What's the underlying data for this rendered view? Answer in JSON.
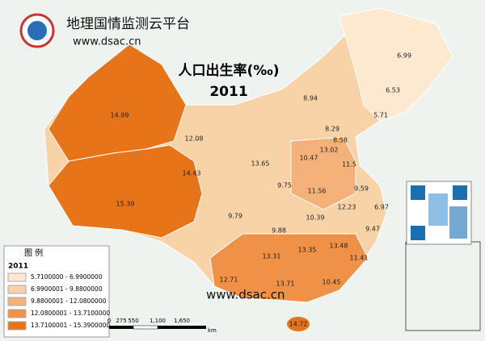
{
  "header": {
    "title": "地理国情监测云平台",
    "url": "www.dsac.cn"
  },
  "map": {
    "title": "人口出生率(‰)",
    "year": "2011",
    "regions": [
      14.99,
      12.08,
      14.43,
      15.39,
      13.65,
      9.75,
      10.47,
      13.02,
      8.29,
      8.58,
      8.94,
      6.99,
      6.53,
      5.71,
      11.5,
      11.56,
      9.59,
      12.23,
      6.97,
      9.47,
      10.39,
      9.79,
      9.88,
      13.31,
      13.35,
      13.48,
      11.41,
      12.71,
      13.71,
      10.45,
      14.72
    ]
  },
  "legend": {
    "title": "图 例",
    "year": "2011",
    "classes": [
      {
        "label": "5.7100000 - 6.9900000",
        "color": "#fde9d0"
      },
      {
        "label": "6.9900001 - 9.8800000",
        "color": "#f9d3a8"
      },
      {
        "label": "9.8800001 - 12.0800000",
        "color": "#f4b27a"
      },
      {
        "label": "12.0800001 - 13.7100000",
        "color": "#ef9146"
      },
      {
        "label": "13.7100001 - 15.3900000",
        "color": "#e8741a"
      }
    ]
  },
  "scale": {
    "ticks": [
      "0",
      "275",
      "550",
      "1,100",
      "1,650"
    ],
    "unit": "km"
  },
  "watermark": "www.dsac.cn"
}
